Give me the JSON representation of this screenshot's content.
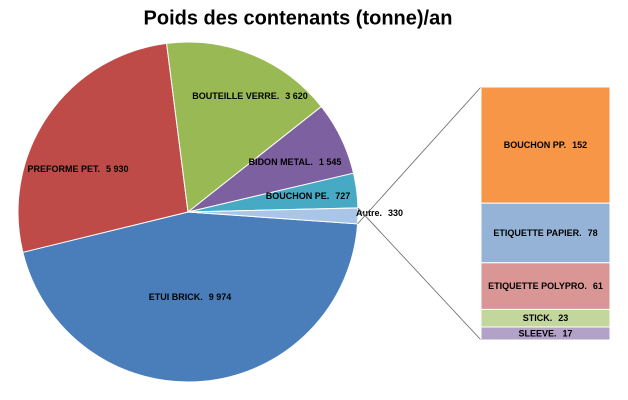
{
  "chart_data": {
    "type": "pie",
    "title": "Poids des contenants (tonne)/an",
    "categories": [
      "ETUI BRICK.",
      "PREFORME PET.",
      "BOUTEILLE VERRE.",
      "BIDON METAL.",
      "BOUCHON PE.",
      "Autre."
    ],
    "values": [
      9974,
      5930,
      3620,
      1545,
      727,
      330
    ],
    "value_labels": [
      "9 974",
      "5 930",
      "3 620",
      "1 545",
      "727",
      "330"
    ],
    "colors": [
      "#4a7ebb",
      "#be4b48",
      "#98b954",
      "#7d60a0",
      "#46aac5",
      "#a9c5e8"
    ],
    "breakdown": {
      "type": "bar",
      "categories": [
        "BOUCHON PP.",
        "ETIQUETTE PAPIER.",
        "ETIQUETTE POLYPRO.",
        "STICK.",
        "SLEEVE."
      ],
      "values": [
        152,
        78,
        61,
        23,
        17
      ],
      "colors": [
        "#f79646",
        "#95b3d7",
        "#d99694",
        "#c3d69b",
        "#b3a2c7"
      ]
    }
  }
}
